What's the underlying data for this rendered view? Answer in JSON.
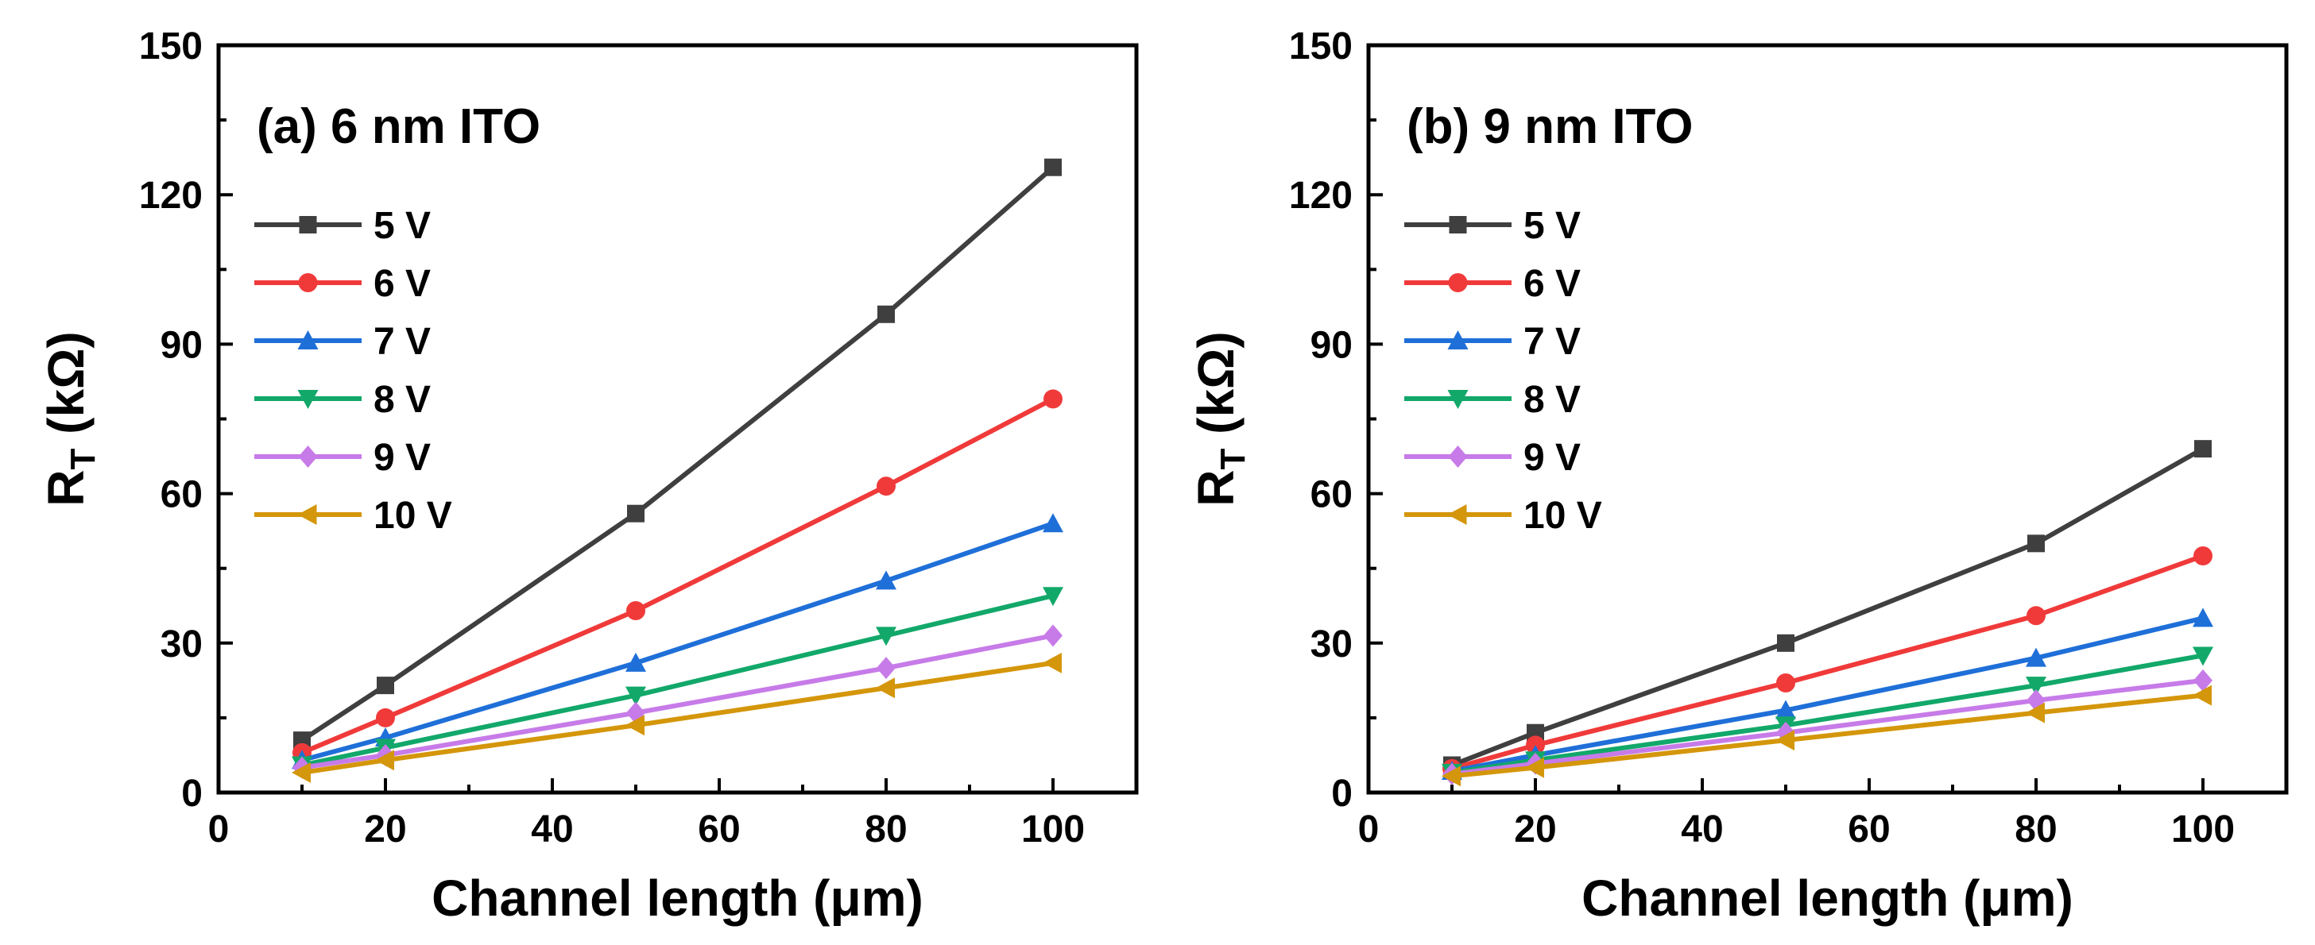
{
  "chart_data": [
    {
      "type": "line",
      "title": "(a) 6 nm ITO",
      "xlabel": "Channel length (μm)",
      "ylabel_main": "R",
      "ylabel_sub": "T",
      "ylabel_unit": " (kΩ)",
      "xlim": [
        0,
        110
      ],
      "ylim": [
        0,
        150
      ],
      "xticks": [
        "0",
        "20",
        "40",
        "60",
        "80",
        "100"
      ],
      "yticks": [
        "0",
        "30",
        "60",
        "90",
        "120",
        "150"
      ],
      "x": [
        10,
        20,
        50,
        80,
        100
      ],
      "legend_position": "upper-left",
      "series": [
        {
          "name": "5 V",
          "color": "#3f3f3f",
          "marker": "square",
          "values": [
            10.5,
            21.5,
            56,
            96,
            125.5
          ]
        },
        {
          "name": "6 V",
          "color": "#f03a3a",
          "marker": "circle",
          "values": [
            8,
            15,
            36.5,
            61.5,
            79
          ]
        },
        {
          "name": "7 V",
          "color": "#1f6fd8",
          "marker": "triangle-up",
          "values": [
            6.5,
            11,
            26,
            42.5,
            54
          ]
        },
        {
          "name": "8 V",
          "color": "#12a86a",
          "marker": "triangle-down",
          "values": [
            5.5,
            9,
            19.5,
            31.5,
            39.5
          ]
        },
        {
          "name": "9 V",
          "color": "#c77be8",
          "marker": "diamond",
          "values": [
            5,
            7.5,
            16,
            25,
            31.5
          ]
        },
        {
          "name": "10 V",
          "color": "#d4960a",
          "marker": "triangle-left",
          "values": [
            4,
            6.5,
            13.5,
            21,
            26
          ]
        }
      ]
    },
    {
      "type": "line",
      "title": "(b) 9 nm ITO",
      "xlabel": "Channel length (μm)",
      "ylabel_main": "R",
      "ylabel_sub": "T",
      "ylabel_unit": " (kΩ)",
      "xlim": [
        0,
        110
      ],
      "ylim": [
        0,
        150
      ],
      "xticks": [
        "0",
        "20",
        "40",
        "60",
        "80",
        "100"
      ],
      "yticks": [
        "0",
        "30",
        "60",
        "90",
        "120",
        "150"
      ],
      "x": [
        10,
        20,
        50,
        80,
        100
      ],
      "legend_position": "upper-left",
      "series": [
        {
          "name": "5 V",
          "color": "#3f3f3f",
          "marker": "square",
          "values": [
            5.5,
            12,
            30,
            50,
            69
          ]
        },
        {
          "name": "6 V",
          "color": "#f03a3a",
          "marker": "circle",
          "values": [
            4.8,
            9.5,
            22,
            35.5,
            47.5
          ]
        },
        {
          "name": "7 V",
          "color": "#1f6fd8",
          "marker": "triangle-up",
          "values": [
            4.3,
            7.5,
            16.5,
            27,
            35
          ]
        },
        {
          "name": "8 V",
          "color": "#12a86a",
          "marker": "triangle-down",
          "values": [
            4,
            6.5,
            13.5,
            21.5,
            27.5
          ]
        },
        {
          "name": "9 V",
          "color": "#c77be8",
          "marker": "diamond",
          "values": [
            3.7,
            5.8,
            12,
            18.5,
            22.5
          ]
        },
        {
          "name": "10 V",
          "color": "#d4960a",
          "marker": "triangle-left",
          "values": [
            3.3,
            5,
            10.5,
            16,
            19.5
          ]
        }
      ]
    }
  ]
}
